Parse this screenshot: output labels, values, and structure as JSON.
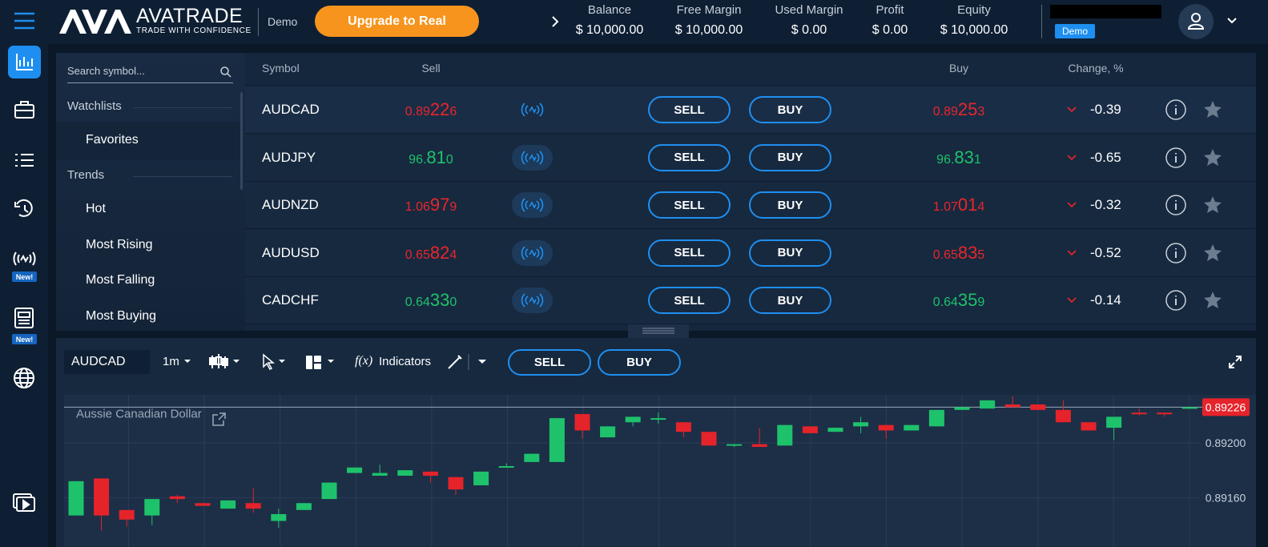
{
  "header": {
    "brand": "AVATRADE",
    "tagline": "TRADE WITH CONFIDENCE",
    "mode": "Demo",
    "upgrade": "Upgrade to Real",
    "stats": [
      {
        "label": "Balance",
        "value": "$ 10,000.00"
      },
      {
        "label": "Free Margin",
        "value": "$ 10,000.00"
      },
      {
        "label": "Used Margin",
        "value": "$ 0.00"
      },
      {
        "label": "Profit",
        "value": "$ 0.00"
      },
      {
        "label": "Equity",
        "value": "$ 10,000.00"
      }
    ],
    "account_badge": "Demo"
  },
  "sidebar": {
    "badges": [
      "New!",
      "New!"
    ]
  },
  "watchlist": {
    "search_placeholder": "Search symbol...",
    "sections": [
      {
        "title": "Watchlists",
        "items": [
          "Favorites"
        ]
      },
      {
        "title": "Trends",
        "items": [
          "Hot",
          "Most Rising",
          "Most Falling",
          "Most Buying"
        ]
      }
    ]
  },
  "table": {
    "columns": [
      "Symbol",
      "Sell",
      "Buy",
      "Change, %"
    ],
    "sell_button": "SELL",
    "buy_button": "BUY",
    "rows": [
      {
        "symbol": "AUDCAD",
        "sell": [
          "0.89",
          "22",
          "6"
        ],
        "buy": [
          "0.89",
          "25",
          "3"
        ],
        "change": "-0.39",
        "color": "#e8262b"
      },
      {
        "symbol": "AUDJPY",
        "sell": [
          "96.",
          "81",
          "0"
        ],
        "buy": [
          "96.",
          "83",
          "1"
        ],
        "change": "-0.65",
        "color": "#1ec26b"
      },
      {
        "symbol": "AUDNZD",
        "sell": [
          "1.06",
          "97",
          "9"
        ],
        "buy": [
          "1.07",
          "01",
          "4"
        ],
        "change": "-0.32",
        "color": "#e8262b"
      },
      {
        "symbol": "AUDUSD",
        "sell": [
          "0.65",
          "82",
          "4"
        ],
        "buy": [
          "0.65",
          "83",
          "5"
        ],
        "change": "-0.52",
        "color": "#e8262b"
      },
      {
        "symbol": "CADCHF",
        "sell": [
          "0.64",
          "33",
          "0"
        ],
        "buy": [
          "0.64",
          "35",
          "9"
        ],
        "change": "-0.14",
        "color": "#1ec26b"
      }
    ]
  },
  "toolbar": {
    "symbol": "AUDCAD",
    "timeframe": "1m",
    "indicators_icon": "f(x)",
    "indicators": "Indicators",
    "sell": "SELL",
    "buy": "BUY"
  },
  "chart_data": {
    "type": "candlestick",
    "title": "Aussie Canadian Dollar",
    "open": [
      0.89147,
      0.89174,
      0.89151,
      0.89147,
      0.89161,
      0.89156,
      0.89152,
      0.89156,
      0.89143,
      0.89151,
      0.89159,
      0.89178,
      0.89176,
      0.89176,
      0.89179,
      0.89175,
      0.89169,
      0.89182,
      0.89186,
      0.89186,
      0.89221,
      0.89204,
      0.89215,
      0.89218,
      0.89215,
      0.89208,
      0.89198,
      0.89199,
      0.89198,
      0.89212,
      0.89208,
      0.89212,
      0.89213,
      0.89209,
      0.89212,
      0.89224,
      0.89225,
      0.89228,
      0.89228,
      0.89224,
      0.89215,
      0.89211,
      0.89222,
      0.89222,
      0.89225
    ],
    "high": [
      0.89172,
      0.89174,
      0.89151,
      0.89159,
      0.89162,
      0.89156,
      0.89158,
      0.89167,
      0.89152,
      0.89156,
      0.89171,
      0.89182,
      0.89184,
      0.8918,
      0.89179,
      0.89175,
      0.89179,
      0.89185,
      0.89192,
      0.89218,
      0.89221,
      0.89212,
      0.89219,
      0.89222,
      0.89215,
      0.89208,
      0.89199,
      0.89211,
      0.89213,
      0.89212,
      0.89211,
      0.89219,
      0.89213,
      0.89213,
      0.89224,
      0.89226,
      0.89231,
      0.89234,
      0.89228,
      0.89231,
      0.89215,
      0.89219,
      0.89225,
      0.89222,
      0.89226
    ],
    "low": [
      0.89147,
      0.89136,
      0.89139,
      0.8914,
      0.89156,
      0.89154,
      0.89152,
      0.89149,
      0.89138,
      0.89151,
      0.89159,
      0.89178,
      0.89176,
      0.89176,
      0.89171,
      0.89162,
      0.89169,
      0.89182,
      0.89186,
      0.89186,
      0.89203,
      0.89204,
      0.89212,
      0.89214,
      0.89204,
      0.89198,
      0.89197,
      0.89197,
      0.89198,
      0.89207,
      0.89208,
      0.89207,
      0.89203,
      0.89209,
      0.89212,
      0.89224,
      0.89225,
      0.89226,
      0.89224,
      0.89215,
      0.89209,
      0.89202,
      0.8922,
      0.89219,
      0.89225
    ],
    "close": [
      0.89172,
      0.89147,
      0.89144,
      0.89159,
      0.89159,
      0.89154,
      0.89158,
      0.89152,
      0.89148,
      0.89156,
      0.89171,
      0.89182,
      0.89178,
      0.8918,
      0.89176,
      0.89166,
      0.89179,
      0.89183,
      0.89192,
      0.89218,
      0.89209,
      0.89212,
      0.89219,
      0.89218,
      0.89208,
      0.89198,
      0.89199,
      0.89197,
      0.89213,
      0.89207,
      0.89211,
      0.89215,
      0.89209,
      0.89213,
      0.89224,
      0.89226,
      0.89231,
      0.89226,
      0.89224,
      0.89215,
      0.89209,
      0.89219,
      0.89221,
      0.89221,
      0.89226
    ],
    "up_color": "#1ec26b",
    "down_color": "#e5232a",
    "ylim": [
      0.89124,
      0.89235
    ],
    "yticks": [
      {
        "value": 0.892,
        "label": "0.89200"
      },
      {
        "value": 0.8916,
        "label": "0.89160"
      }
    ],
    "grid": true,
    "last": {
      "value": 0.89226,
      "label": "0.89226"
    }
  }
}
